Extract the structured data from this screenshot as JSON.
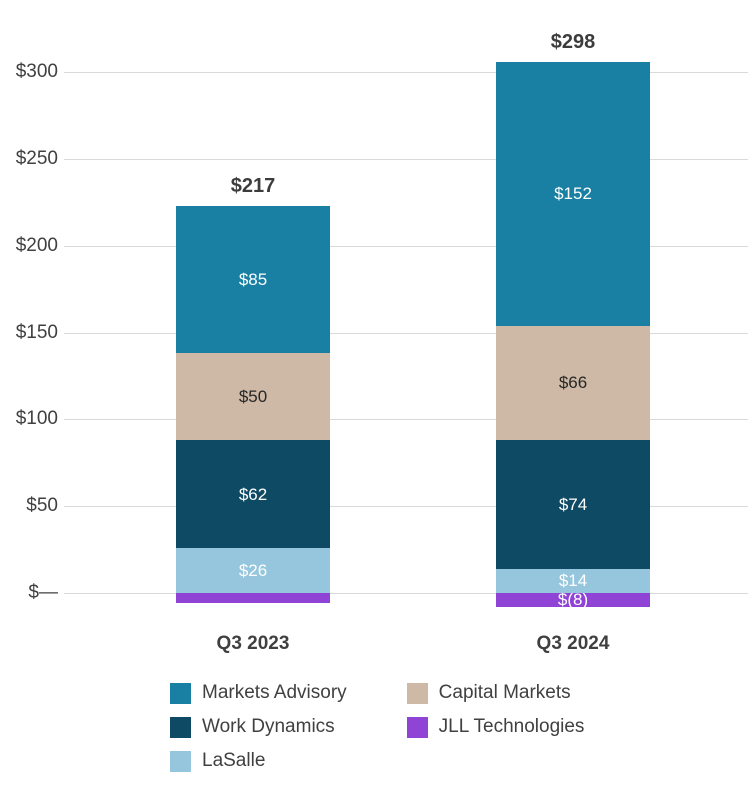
{
  "chart_data": {
    "type": "bar",
    "stacked": true,
    "title": "",
    "xlabel": "",
    "ylabel": "",
    "categories": [
      "Q3 2023",
      "Q3 2024"
    ],
    "series": [
      {
        "name": "JLL Technologies",
        "color": "#8f44d6",
        "label_color": "#ffffff",
        "values": [
          -6,
          -8
        ],
        "labels": [
          "",
          "$(8)"
        ]
      },
      {
        "name": "LaSalle",
        "color": "#95c6de",
        "label_color": "#ffffff",
        "values": [
          26,
          14
        ],
        "labels": [
          "$26",
          "$14"
        ]
      },
      {
        "name": "Work Dynamics",
        "color": "#0e4a64",
        "label_color": "#ffffff",
        "values": [
          62,
          74
        ],
        "labels": [
          "$62",
          "$74"
        ]
      },
      {
        "name": "Capital Markets",
        "color": "#cdb9a5",
        "label_color": "#262626",
        "values": [
          50,
          66
        ],
        "labels": [
          "$50",
          "$66"
        ]
      },
      {
        "name": "Markets Advisory",
        "color": "#1a80a3",
        "label_color": "#ffffff",
        "values": [
          85,
          152
        ],
        "labels": [
          "$85",
          "$152"
        ]
      }
    ],
    "totals": [
      "$217",
      "$298"
    ],
    "y_ticks": [
      {
        "value": 0,
        "label": "$—"
      },
      {
        "value": 50,
        "label": "$50"
      },
      {
        "value": 100,
        "label": "$100"
      },
      {
        "value": 150,
        "label": "$150"
      },
      {
        "value": 200,
        "label": "$200"
      },
      {
        "value": 250,
        "label": "$250"
      },
      {
        "value": 300,
        "label": "$300"
      }
    ],
    "ylim": [
      0,
      300
    ],
    "grid": true,
    "grid_color": "#d9d9d9",
    "axis_text_color": "#404040",
    "legend_position": "bottom",
    "legend_order": [
      "Markets Advisory",
      "Work Dynamics",
      "LaSalle",
      "Capital Markets",
      "JLL Technologies"
    ]
  }
}
